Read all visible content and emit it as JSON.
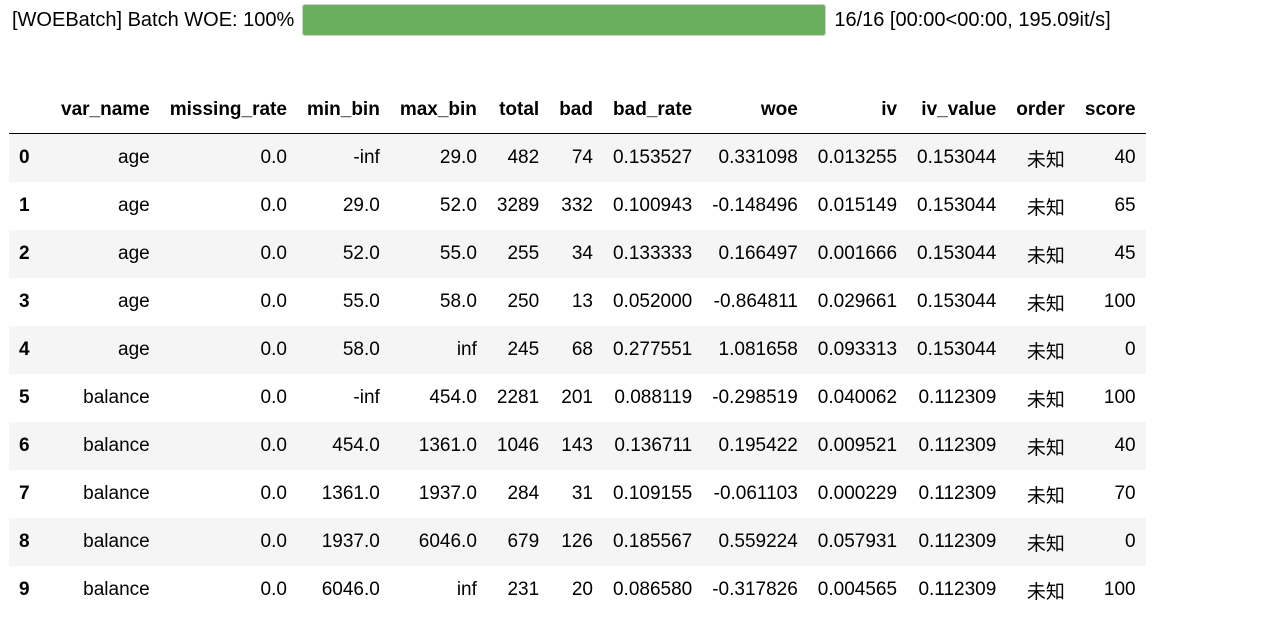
{
  "progress": {
    "prefix": "[WOEBatch] Batch WOE: 100%",
    "fraction": 1.0,
    "suffix": "16/16 [00:00<00:00, 195.09it/s]",
    "fill_color": "#6aaf5c"
  },
  "table": {
    "columns": [
      "",
      "var_name",
      "missing_rate",
      "min_bin",
      "max_bin",
      "total",
      "bad",
      "bad_rate",
      "woe",
      "iv",
      "iv_value",
      "order",
      "score"
    ],
    "rows": [
      [
        "0",
        "age",
        "0.0",
        "-inf",
        "29.0",
        "482",
        "74",
        "0.153527",
        "0.331098",
        "0.013255",
        "0.153044",
        "未知",
        "40"
      ],
      [
        "1",
        "age",
        "0.0",
        "29.0",
        "52.0",
        "3289",
        "332",
        "0.100943",
        "-0.148496",
        "0.015149",
        "0.153044",
        "未知",
        "65"
      ],
      [
        "2",
        "age",
        "0.0",
        "52.0",
        "55.0",
        "255",
        "34",
        "0.133333",
        "0.166497",
        "0.001666",
        "0.153044",
        "未知",
        "45"
      ],
      [
        "3",
        "age",
        "0.0",
        "55.0",
        "58.0",
        "250",
        "13",
        "0.052000",
        "-0.864811",
        "0.029661",
        "0.153044",
        "未知",
        "100"
      ],
      [
        "4",
        "age",
        "0.0",
        "58.0",
        "inf",
        "245",
        "68",
        "0.277551",
        "1.081658",
        "0.093313",
        "0.153044",
        "未知",
        "0"
      ],
      [
        "5",
        "balance",
        "0.0",
        "-inf",
        "454.0",
        "2281",
        "201",
        "0.088119",
        "-0.298519",
        "0.040062",
        "0.112309",
        "未知",
        "100"
      ],
      [
        "6",
        "balance",
        "0.0",
        "454.0",
        "1361.0",
        "1046",
        "143",
        "0.136711",
        "0.195422",
        "0.009521",
        "0.112309",
        "未知",
        "40"
      ],
      [
        "7",
        "balance",
        "0.0",
        "1361.0",
        "1937.0",
        "284",
        "31",
        "0.109155",
        "-0.061103",
        "0.000229",
        "0.112309",
        "未知",
        "70"
      ],
      [
        "8",
        "balance",
        "0.0",
        "1937.0",
        "6046.0",
        "679",
        "126",
        "0.185567",
        "0.559224",
        "0.057931",
        "0.112309",
        "未知",
        "0"
      ],
      [
        "9",
        "balance",
        "0.0",
        "6046.0",
        "inf",
        "231",
        "20",
        "0.086580",
        "-0.317826",
        "0.004565",
        "0.112309",
        "未知",
        "100"
      ]
    ]
  }
}
